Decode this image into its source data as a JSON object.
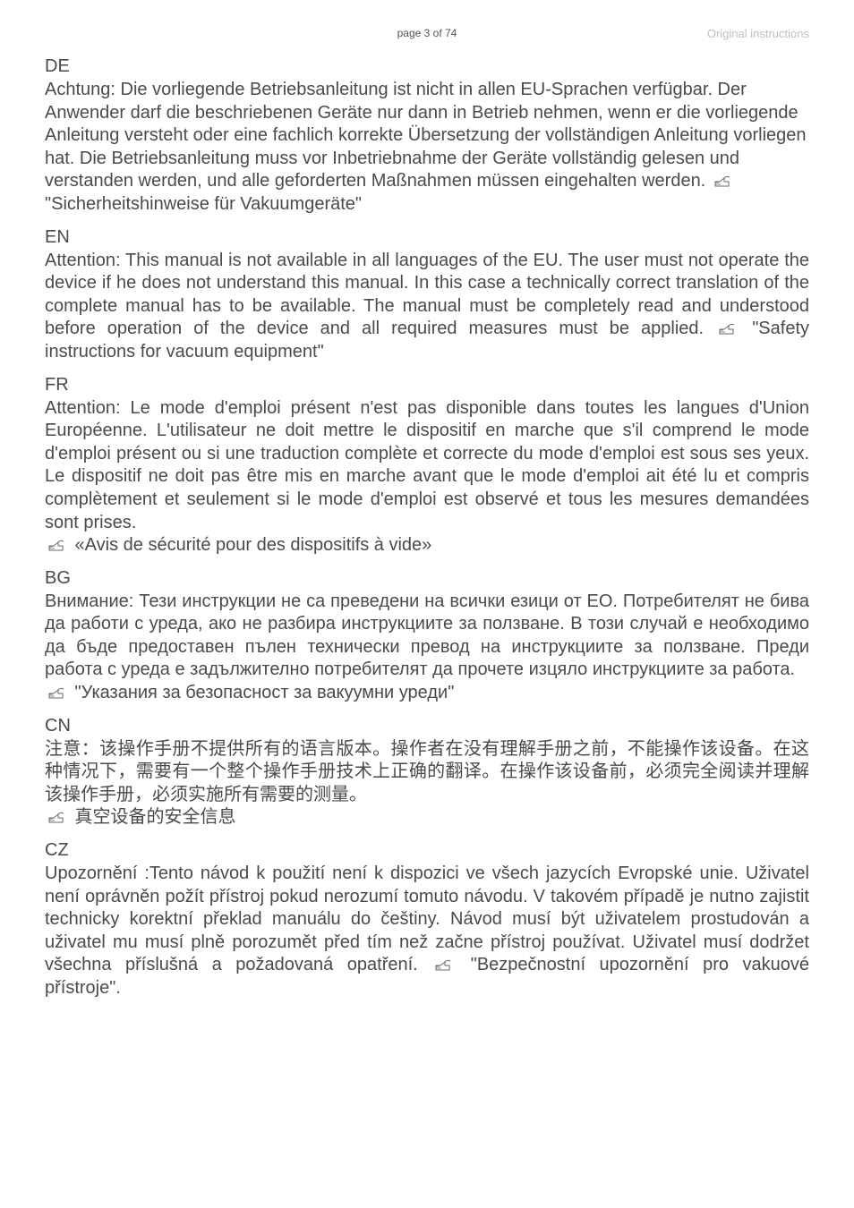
{
  "header": {
    "center": "page 3 of 74",
    "right": "Original instructions"
  },
  "icons": {
    "hand_stroke": "#6a6a6a"
  },
  "sections": [
    {
      "code": "DE",
      "justify": false,
      "text_before": "Achtung: Die vorliegende Betriebsanleitung ist nicht in allen EU-Sprachen verfügbar. Der Anwender darf die beschriebenen Geräte nur dann in Betrieb nehmen, wenn er die vorliegende Anleitung versteht oder eine fachlich korrekte Übersetzung der vollständigen Anleitung vorliegen hat. Die Betriebsanleitung muss vor Inbetriebnahme der Geräte vollständig gelesen und verstanden werden, und alle geforderten Maßnahmen müssen eingehalten werden. ",
      "ref": " \"Sicherheitshinweise für Vakuumgeräte\"",
      "text_after": ""
    },
    {
      "code": "EN",
      "justify": true,
      "text_before": "Attention: This manual is not available in all languages of the EU. The user must not operate the device if he does not understand this manual. In this case a technically correct translation of the complete manual has to be available. The manual must be completely read and understood before operation of the device and all required measures must be applied.  ",
      "ref": " \"Safety instructions for vacuum equipment\"",
      "text_after": ""
    },
    {
      "code": "FR",
      "justify": true,
      "text_before": "Attention: Le mode d'emploi présent n'est pas disponible dans toutes les langues d'Union Européenne. L'utilisateur ne doit mettre le dispositif en marche que s'il comprend le mode d'emploi présent ou si une traduction complète et correcte du mode d'emploi est sous ses yeux. Le dispositif ne doit pas être mis en marche avant que le mode d'emploi ait été lu et compris complètement et seulement si le mode d'emploi est observé et tous les mesures demandées sont prises.",
      "ref_line": " «Avis de sécurité pour des dispositifs à vide»"
    },
    {
      "code": "BG",
      "justify": true,
      "text_before": "Внимание: Тези инструкции не са преведени на всички езици от ЕО. Потребителят не бива да работи с уреда, ако не разбира инструкциите за ползване. В този случай е необходимо да бъде предоставен пълен технически превод на инструкциите за ползване. Преди работа с уреда е задължително потребителят да прочете изцяло инструкциите за работа.",
      "ref_line": " \"Указания за безопасност за вакуумни уреди\""
    },
    {
      "code": "CN",
      "justify": true,
      "text_before": "注意：该操作手册不提供所有的语言版本。操作者在没有理解手册之前，不能操作该设备。在这种情况下，需要有一个整个操作手册技术上正确的翻译。在操作该设备前，必须完全阅读并理解该操作手册，必须实施所有需要的测量。",
      "ref_line": " 真空设备的安全信息"
    },
    {
      "code": "CZ",
      "justify": true,
      "text_before": "Upozornění :Tento návod k použití není k dispozici ve všech jazycích Evropské unie. Uživatel není oprávněn požít přístroj pokud nerozumí tomuto návodu. V takovém případě je nutno zajistit technicky korektní překlad manuálu do češtiny. Návod musí být uživatelem prostudován a uživatel mu musí plně porozumět před tím než začne přístroj používat. Uživatel musí dodržet všechna příslušná a požadovaná opatření. ",
      "ref": " \"Bezpečnostní upozornění pro vakuové přístroje\".",
      "text_after": ""
    }
  ]
}
